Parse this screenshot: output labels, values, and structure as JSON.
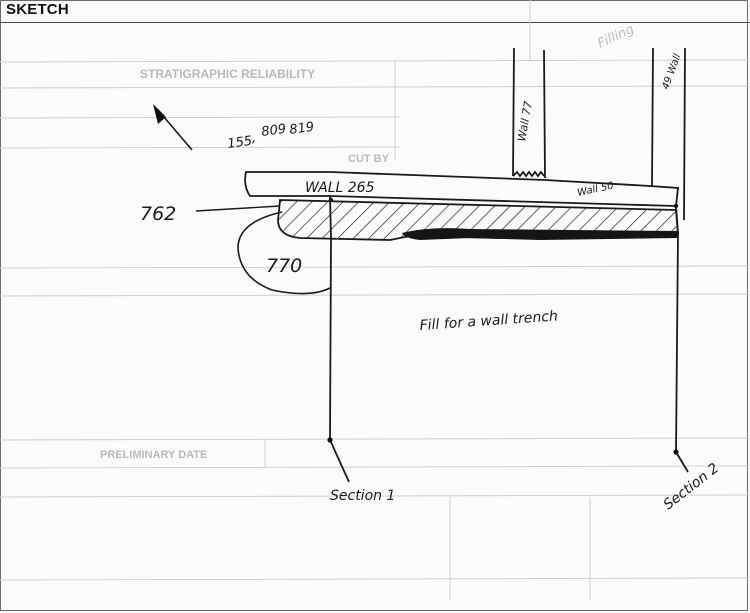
{
  "header": {
    "title": "SKETCH"
  },
  "labels": {
    "wall_265": "WALL 265",
    "wall_77": "Wall 77",
    "wall_49": "49 Wall",
    "wall_50": "Wall 50",
    "feature_762": "762",
    "feature_770": "770",
    "section_1": "Section 1",
    "section_2": "Section 2",
    "note_fill": "Fill for a wall trench",
    "measure_155": "155",
    "measure_809": "809",
    "measure_819": "819"
  },
  "bleed_through": {
    "stratigraphic_reliability": "STRATIGRAPHIC RELIABILITY",
    "cut_by": "CUT BY",
    "preliminary_date": "PRELIMINARY DATE",
    "filling": "Filling"
  },
  "colors": {
    "ink": "#1a1a1a",
    "hatch": "#222222",
    "paper": "#fbfbfb",
    "ghost": "#b9b9b9"
  },
  "icons": {
    "north": "north-arrow-icon"
  }
}
